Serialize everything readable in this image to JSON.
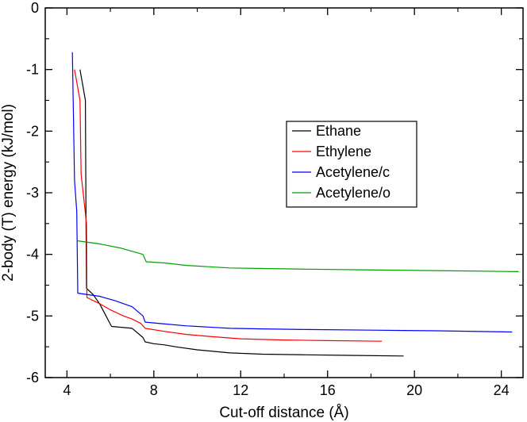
{
  "chart_data": {
    "type": "line",
    "title": "",
    "xlabel": "Cut-off distance (Å)",
    "ylabel": "2-body (T) energy (kJ/mol)",
    "xlim": [
      3.0,
      25.0
    ],
    "ylim": [
      -6.0,
      0.0
    ],
    "xticks": [
      4,
      8,
      12,
      16,
      20,
      24
    ],
    "yticks": [
      0,
      -1,
      -2,
      -3,
      -4,
      -5,
      -6
    ],
    "xtick_labels": [
      "4",
      "8",
      "12",
      "16",
      "20",
      "24"
    ],
    "ytick_labels": [
      "0",
      "-1",
      "-2",
      "-3",
      "-4",
      "-5",
      "-6"
    ],
    "legend_position": "center-right",
    "series": [
      {
        "name": "Ethane",
        "color": "#000000",
        "x": [
          4.6,
          4.85,
          4.88,
          4.9,
          5.2,
          5.5,
          5.8,
          6.05,
          7.0,
          7.5,
          7.6,
          8.0,
          8.5,
          9.0,
          10.0,
          11.5,
          13.0,
          15.0,
          17.0,
          19.5
        ],
        "y": [
          -1.0,
          -1.5,
          -3.5,
          -4.55,
          -4.65,
          -4.8,
          -5.0,
          -5.17,
          -5.2,
          -5.35,
          -5.42,
          -5.45,
          -5.47,
          -5.5,
          -5.55,
          -5.6,
          -5.62,
          -5.63,
          -5.64,
          -5.65
        ]
      },
      {
        "name": "Ethylene",
        "color": "#ff0000",
        "x": [
          4.35,
          4.6,
          4.65,
          4.9,
          4.92,
          5.5,
          6.0,
          6.6,
          7.0,
          7.4,
          7.6,
          8.5,
          9.5,
          10.5,
          12.0,
          14.0,
          16.0,
          18.5
        ],
        "y": [
          -1.0,
          -1.5,
          -2.7,
          -3.5,
          -4.7,
          -4.8,
          -4.9,
          -5.0,
          -5.05,
          -5.12,
          -5.2,
          -5.25,
          -5.3,
          -5.33,
          -5.37,
          -5.39,
          -5.4,
          -5.41
        ]
      },
      {
        "name": "Acetylene/c",
        "color": "#0000ff",
        "x": [
          4.25,
          4.35,
          4.45,
          4.5,
          5.5,
          6.2,
          7.0,
          7.5,
          7.6,
          8.5,
          9.5,
          10.5,
          11.5,
          13.0,
          15.0,
          18.0,
          21.0,
          24.5
        ],
        "y": [
          -0.72,
          -2.8,
          -3.3,
          -4.63,
          -4.68,
          -4.75,
          -4.85,
          -5.0,
          -5.1,
          -5.13,
          -5.16,
          -5.18,
          -5.2,
          -5.21,
          -5.22,
          -5.23,
          -5.24,
          -5.26
        ]
      },
      {
        "name": "Acetylene/o",
        "color": "#00a000",
        "x": [
          4.5,
          5.5,
          6.5,
          7.5,
          7.65,
          8.5,
          9.5,
          10.5,
          11.5,
          13.0,
          15.0,
          17.5,
          20.0,
          22.5,
          24.8
        ],
        "y": [
          -3.78,
          -3.83,
          -3.9,
          -4.0,
          -4.12,
          -4.14,
          -4.18,
          -4.2,
          -4.22,
          -4.23,
          -4.24,
          -4.25,
          -4.26,
          -4.27,
          -4.28
        ]
      }
    ]
  }
}
